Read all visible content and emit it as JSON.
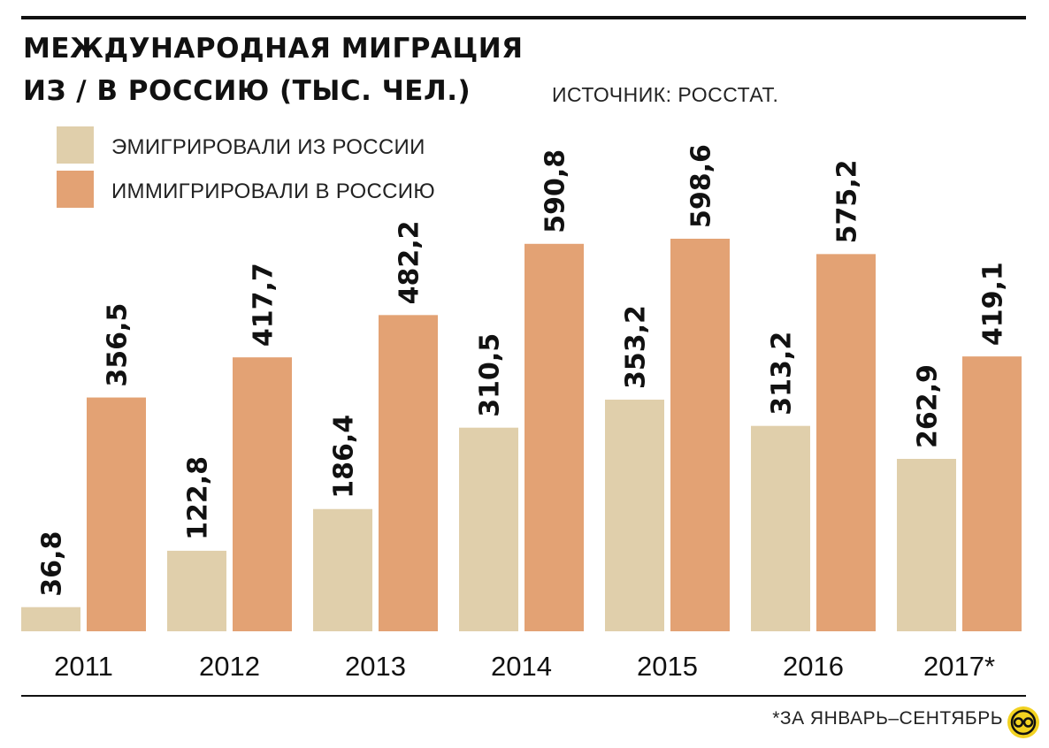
{
  "header": {
    "title_line1": "МЕЖДУНАРОДНАЯ МИГРАЦИЯ",
    "title_line2": "ИЗ / В РОССИЮ (ТЫС. ЧЕЛ.)",
    "source": "ИСТОЧНИК: РОССТАТ."
  },
  "footnote": "*ЗА ЯНВАРЬ–СЕНТЯБРЬ",
  "logo_icon": "eye-logo-icon",
  "chart_data": {
    "type": "bar",
    "categories": [
      "2011",
      "2012",
      "2013",
      "2014",
      "2015",
      "2016",
      "2017*"
    ],
    "series": [
      {
        "name": "ЭМИГРИРОВАЛИ ИЗ РОССИИ",
        "color": "#e0cfab",
        "values": [
          36.8,
          122.8,
          186.4,
          310.5,
          353.2,
          313.2,
          262.9
        ],
        "labels": [
          "36,8",
          "122,8",
          "186,4",
          "310,5",
          "353,2",
          "313,2",
          "262,9"
        ]
      },
      {
        "name": "ИММИГРИРОВАЛИ В РОССИЮ",
        "color": "#e3a274",
        "values": [
          356.5,
          417.7,
          482.2,
          590.8,
          598.6,
          575.2,
          419.1
        ],
        "labels": [
          "356,5",
          "417,7",
          "482,2",
          "590,8",
          "598,6",
          "575,2",
          "419,1"
        ]
      }
    ],
    "ylim": [
      0,
      598.6
    ],
    "grid": false,
    "legend_position": "top-left",
    "data_labels": "rotated-vertical"
  }
}
